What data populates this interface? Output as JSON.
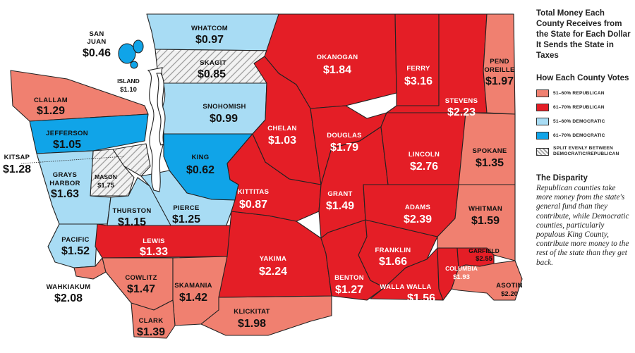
{
  "title": "Total Money Each County Receives from the State for Each Dollar It Sends the State in Taxes",
  "legend": {
    "title": "How Each County Votes",
    "items": [
      {
        "label": "51–60% REPUBLICAN",
        "color": "#f08070"
      },
      {
        "label": "61–70% REPUBLICAN",
        "color": "#e41e26"
      },
      {
        "label": "51–60% DEMOCRATIC",
        "color": "#a8dcf4"
      },
      {
        "label": "61–70% DEMOCRATIC",
        "color": "#10a4e8"
      },
      {
        "label": "SPLIT EVENLY BETWEEN DEMOCRATIC/REPUBLICAN",
        "color": "hatched"
      }
    ]
  },
  "disparity": {
    "title": "The Disparity",
    "text": "Republican counties take more money from the state's general fund than they contribute, while Democratic counties, particularly populous King County, contribute more money to the rest of the state than they get back."
  },
  "counties": [
    {
      "id": "whatcom",
      "name": "WHATCOM",
      "value": "$0.97"
    },
    {
      "id": "skagit",
      "name": "SKAGIT",
      "value": "$0.85"
    },
    {
      "id": "snohomish",
      "name": "SNOHOMISH",
      "value": "$0.99"
    },
    {
      "id": "king",
      "name": "KING",
      "value": "$0.62"
    },
    {
      "id": "san_juan",
      "name": "SAN JUAN",
      "value": "$0.46"
    },
    {
      "id": "island",
      "name": "ISLAND",
      "value": "$1.10"
    },
    {
      "id": "clallam",
      "name": "CLALLAM",
      "value": "$1.29"
    },
    {
      "id": "jefferson",
      "name": "JEFFERSON",
      "value": "$1.05"
    },
    {
      "id": "kitsap",
      "name": "KITSAP",
      "value": "$1.28"
    },
    {
      "id": "mason",
      "name": "MASON",
      "value": "$1.75"
    },
    {
      "id": "grays_harbor",
      "name": "GRAYS HARBOR",
      "value": "$1.63"
    },
    {
      "id": "thurston",
      "name": "THURSTON",
      "value": "$1.15"
    },
    {
      "id": "pierce",
      "name": "PIERCE",
      "value": "$1.25"
    },
    {
      "id": "pacific",
      "name": "PACIFIC",
      "value": "$1.52"
    },
    {
      "id": "lewis",
      "name": "LEWIS",
      "value": "$1.33"
    },
    {
      "id": "wahkiakum",
      "name": "WAHKIAKUM",
      "value": "$2.08"
    },
    {
      "id": "cowlitz",
      "name": "COWLITZ",
      "value": "$1.47"
    },
    {
      "id": "skamania",
      "name": "SKAMANIA",
      "value": "$1.42"
    },
    {
      "id": "clark",
      "name": "CLARK",
      "value": "$1.39"
    },
    {
      "id": "klickitat",
      "name": "KLICKITAT",
      "value": "$1.98"
    },
    {
      "id": "yakima",
      "name": "YAKIMA",
      "value": "$2.24"
    },
    {
      "id": "kittitas",
      "name": "KITTITAS",
      "value": "$0.87"
    },
    {
      "id": "chelan",
      "name": "CHELAN",
      "value": "$1.03"
    },
    {
      "id": "okanogan",
      "name": "OKANOGAN",
      "value": "$1.84"
    },
    {
      "id": "douglas",
      "name": "DOUGLAS",
      "value": "$1.79"
    },
    {
      "id": "grant",
      "name": "GRANT",
      "value": "$1.49"
    },
    {
      "id": "benton",
      "name": "BENTON",
      "value": "$1.27"
    },
    {
      "id": "franklin",
      "name": "FRANKLIN",
      "value": "$1.66"
    },
    {
      "id": "adams",
      "name": "ADAMS",
      "value": "$2.39"
    },
    {
      "id": "lincoln",
      "name": "LINCOLN",
      "value": "$2.76"
    },
    {
      "id": "ferry",
      "name": "FERRY",
      "value": "$3.16"
    },
    {
      "id": "stevens",
      "name": "STEVENS",
      "value": "$2.23"
    },
    {
      "id": "pend_oreille",
      "name": "PEND OREILLE",
      "value": "$1.97"
    },
    {
      "id": "spokane",
      "name": "SPOKANE",
      "value": "$1.35"
    },
    {
      "id": "whitman",
      "name": "WHITMAN",
      "value": "$1.59"
    },
    {
      "id": "walla_walla",
      "name": "WALLA WALLA",
      "value": "$1.56"
    },
    {
      "id": "columbia",
      "name": "COLUMBIA",
      "value": "$1.93"
    },
    {
      "id": "garfield",
      "name": "GARFIELD",
      "value": "$2.55"
    },
    {
      "id": "asotin",
      "name": "ASOTIN",
      "value": "$2.20"
    }
  ]
}
